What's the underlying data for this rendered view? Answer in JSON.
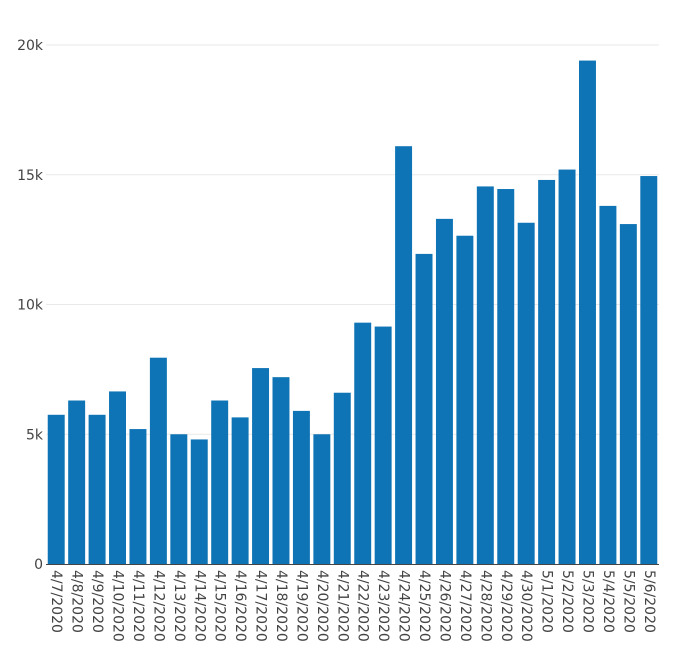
{
  "chart_data": {
    "type": "bar",
    "title": "",
    "xlabel": "",
    "ylabel": "",
    "ylim": [
      0,
      20000
    ],
    "grid": "horizontal",
    "bar_color": "#0f74b5",
    "grid_color": "#e9e9e9",
    "axis_color": "#444444",
    "yticks": [
      {
        "value": 0,
        "label": "0"
      },
      {
        "value": 5000,
        "label": "5k"
      },
      {
        "value": 10000,
        "label": "10k"
      },
      {
        "value": 15000,
        "label": "15k"
      },
      {
        "value": 20000,
        "label": "20k"
      }
    ],
    "categories": [
      "4/7/2020",
      "4/8/2020",
      "4/9/2020",
      "4/10/2020",
      "4/11/2020",
      "4/12/2020",
      "4/13/2020",
      "4/14/2020",
      "4/15/2020",
      "4/16/2020",
      "4/17/2020",
      "4/18/2020",
      "4/19/2020",
      "4/20/2020",
      "4/21/2020",
      "4/22/2020",
      "4/23/2020",
      "4/24/2020",
      "4/25/2020",
      "4/26/2020",
      "4/27/2020",
      "4/28/2020",
      "4/29/2020",
      "4/30/2020",
      "5/1/2020",
      "5/2/2020",
      "5/3/2020",
      "5/4/2020",
      "5/5/2020",
      "5/6/2020"
    ],
    "values": [
      5750,
      6300,
      5750,
      6650,
      5200,
      7950,
      5000,
      4800,
      6300,
      5650,
      7550,
      7200,
      5900,
      5000,
      6600,
      9300,
      9150,
      16100,
      11950,
      13300,
      12650,
      14550,
      14450,
      13150,
      14800,
      15200,
      19400,
      13800,
      13100,
      14950
    ]
  }
}
